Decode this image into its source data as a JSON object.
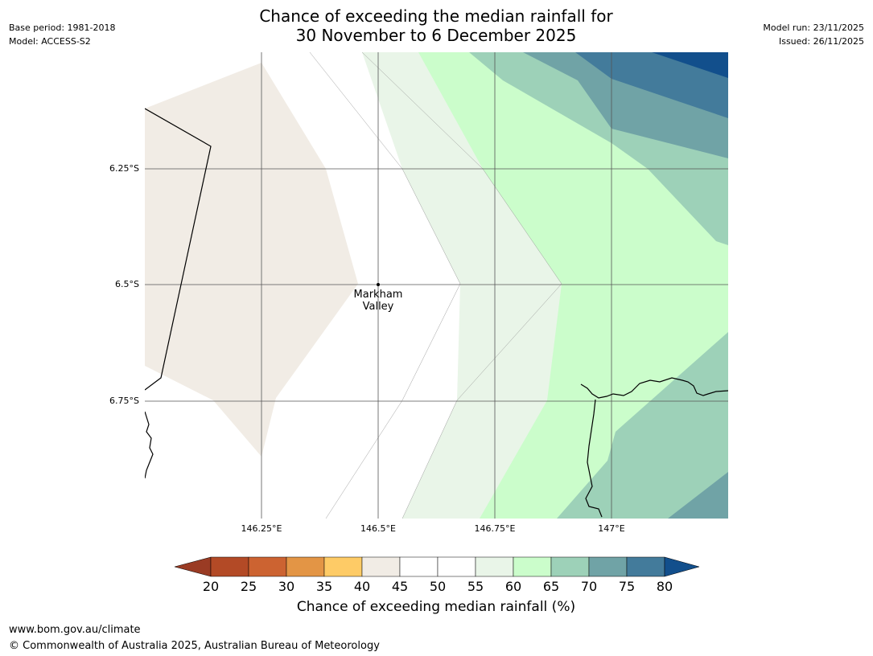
{
  "header": {
    "title_line1": "Chance of exceeding the median rainfall for",
    "title_line2": "30 November to 6 December 2025",
    "base_period": "Base period: 1981-2018",
    "model": "Model: ACCESS-S2",
    "model_run": "Model run: 23/11/2025",
    "issued": "Issued: 26/11/2025"
  },
  "map": {
    "lat_labels": [
      "6.25°S",
      "6.5°S",
      "6.75°S"
    ],
    "lon_labels": [
      "146.25°E",
      "146.5°E",
      "146.75°E",
      "147°E"
    ],
    "place": {
      "name_line1": "Markham",
      "name_line2": "Valley"
    }
  },
  "colorbar": {
    "title": "Chance of exceeding median rainfall (%)",
    "ticks": [
      "20",
      "25",
      "30",
      "35",
      "40",
      "45",
      "50",
      "55",
      "60",
      "65",
      "70",
      "75",
      "80"
    ],
    "colors": {
      "below20": "#9a3b24",
      "b20_25": "#b34a26",
      "b25_30": "#cc6331",
      "b30_35": "#e39545",
      "b35_40": "#fecb66",
      "b40_45": "#f1ece5",
      "b45_55": "#ffffff",
      "b55_60": "#e9f5e8",
      "b60_65": "#cbfdcb",
      "b65_70": "#9dd1b8",
      "b70_75": "#70a3a6",
      "b75_80": "#437b9b",
      "above80": "#124f8c"
    }
  },
  "footer": {
    "url": "www.bom.gov.au/climate",
    "copyright": "© Commonwealth of Australia 2025, Australian Bureau of Meteorology"
  }
}
